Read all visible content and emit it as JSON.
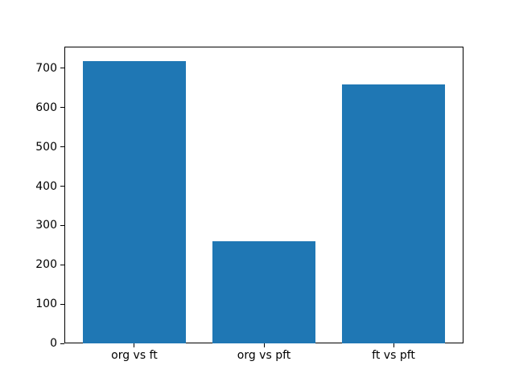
{
  "chart_data": {
    "type": "bar",
    "title": "",
    "xlabel": "",
    "ylabel": "",
    "categories": [
      "org vs ft",
      "org vs pft",
      "ft vs pft"
    ],
    "values": [
      719,
      259,
      658
    ],
    "bar_color": "#1f77b4",
    "axis_color": "#000000",
    "background_color": "#ffffff",
    "yticks": [
      0,
      100,
      200,
      300,
      400,
      500,
      600,
      700
    ],
    "ylim": [
      0,
      755
    ],
    "xlim": [
      -0.54,
      2.54
    ],
    "bar_width": 0.8,
    "grid": false,
    "legend": false
  }
}
